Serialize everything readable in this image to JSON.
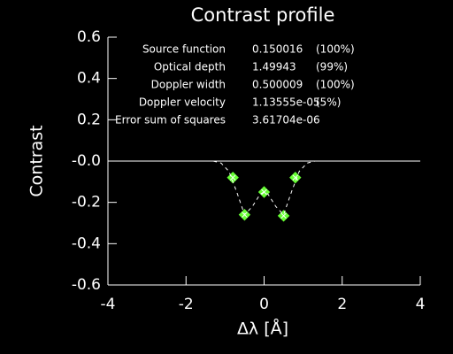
{
  "chart_data": {
    "type": "line",
    "title": "Contrast profile",
    "x_label": "Δλ [Å]",
    "y_label": "Contrast",
    "xlim": [
      -4,
      4
    ],
    "ylim": [
      -0.6,
      0.6
    ],
    "xticks": [
      -4,
      -2,
      0,
      2,
      4
    ],
    "yticks": [
      0.6,
      0.4,
      0.2,
      {
        "value": 0,
        "label": "-0.0"
      },
      -0.2,
      -0.4,
      -0.6
    ],
    "reference_line": 0,
    "series": [
      {
        "color": "#66ff33",
        "marker": "diamond",
        "line": "none",
        "x": [
          -0.8,
          -0.5,
          0,
          0.5,
          0.8
        ],
        "values": [
          -0.08,
          -0.26,
          -0.15,
          -0.265,
          -0.08
        ]
      },
      {
        "color": "#ffffff",
        "marker": "none",
        "line": "dashed",
        "x": [
          -1.3,
          -1.1,
          -0.9,
          -0.7,
          -0.5,
          -0.3,
          -0.1,
          0,
          0.1,
          0.3,
          0.5,
          0.7,
          0.9,
          1.1,
          1.3
        ],
        "values": [
          0,
          -0.01,
          -0.05,
          -0.15,
          -0.26,
          -0.22,
          -0.16,
          -0.15,
          -0.16,
          -0.22,
          -0.26,
          -0.15,
          -0.05,
          -0.01,
          0
        ]
      }
    ],
    "fit_table": [
      [
        "Source function",
        "0.150016",
        "(100%)"
      ],
      [
        "Optical depth",
        "1.49943",
        "(99%)"
      ],
      [
        "Doppler width",
        "0.500009",
        "(100%)"
      ],
      [
        "Doppler velocity",
        "1.13555e-05",
        "(5%)"
      ],
      [
        "Error sum of squares",
        "3.61704e-06"
      ]
    ]
  }
}
